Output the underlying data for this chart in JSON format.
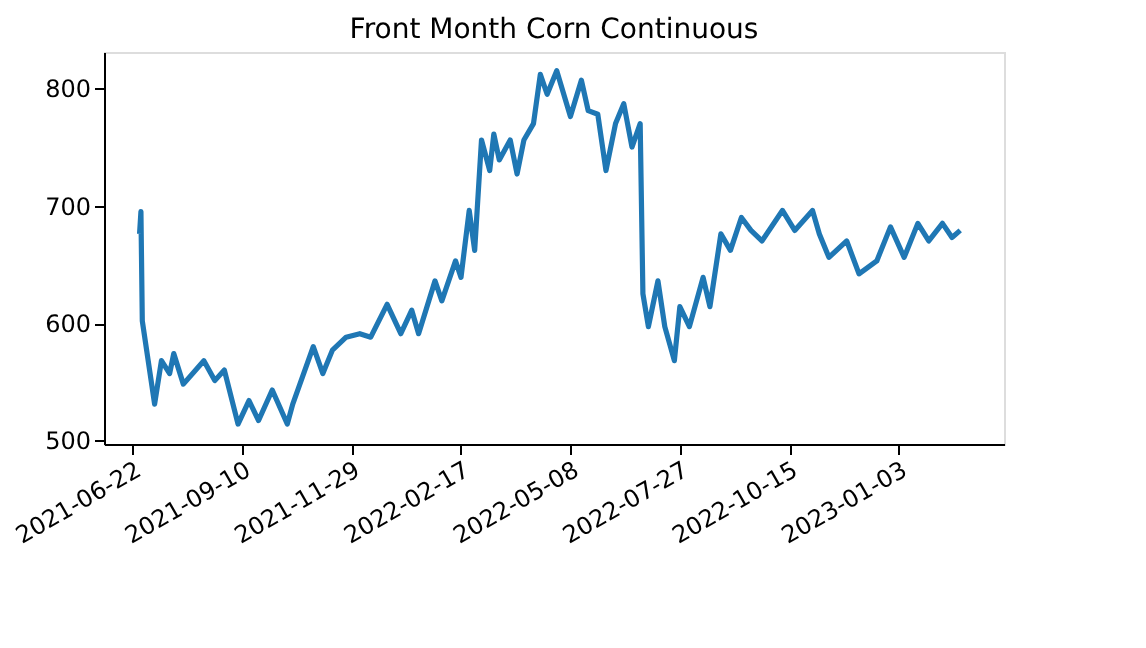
{
  "chart_data": {
    "type": "line",
    "title": "Front Month Corn Continuous",
    "x": [
      "2021-06-27",
      "2021-06-28",
      "2021-06-29",
      "2021-07-08",
      "2021-07-13",
      "2021-07-19",
      "2021-07-22",
      "2021-07-29",
      "2021-08-13",
      "2021-08-21",
      "2021-08-28",
      "2021-09-07",
      "2021-09-15",
      "2021-09-22",
      "2021-10-02",
      "2021-10-13",
      "2021-10-17",
      "2021-11-01",
      "2021-11-08",
      "2021-11-15",
      "2021-11-25",
      "2021-12-05",
      "2021-12-13",
      "2021-12-25",
      "2022-01-04",
      "2022-01-12",
      "2022-01-17",
      "2022-01-29",
      "2022-02-03",
      "2022-02-13",
      "2022-02-17",
      "2022-02-23",
      "2022-02-27",
      "2022-03-04",
      "2022-03-10",
      "2022-03-13",
      "2022-03-17",
      "2022-03-25",
      "2022-03-30",
      "2022-04-04",
      "2022-04-11",
      "2022-04-16",
      "2022-04-21",
      "2022-04-28",
      "2022-05-08",
      "2022-05-16",
      "2022-05-21",
      "2022-05-28",
      "2022-06-03",
      "2022-06-10",
      "2022-06-16",
      "2022-06-22",
      "2022-06-28",
      "2022-06-30",
      "2022-07-04",
      "2022-07-11",
      "2022-07-16",
      "2022-07-23",
      "2022-07-27",
      "2022-08-03",
      "2022-08-13",
      "2022-08-18",
      "2022-08-26",
      "2022-09-02",
      "2022-09-10",
      "2022-09-17",
      "2022-09-25",
      "2022-10-10",
      "2022-10-19",
      "2022-11-01",
      "2022-11-06",
      "2022-11-13",
      "2022-11-26",
      "2022-12-05",
      "2022-12-18",
      "2022-12-28",
      "2023-01-07",
      "2023-01-17",
      "2023-01-25",
      "2023-02-04",
      "2023-02-11",
      "2023-02-17"
    ],
    "series": [
      {
        "color": "#1f77b4",
        "values": [
          676,
          695,
          602,
          531,
          568,
          557,
          574,
          548,
          568,
          551,
          560,
          514,
          534,
          517,
          543,
          514,
          531,
          580,
          557,
          577,
          588,
          591,
          588,
          616,
          591,
          611,
          591,
          636,
          619,
          653,
          639,
          696,
          662,
          756,
          730,
          761,
          739,
          756,
          727,
          756,
          770,
          812,
          795,
          815,
          776,
          807,
          781,
          778,
          730,
          770,
          787,
          750,
          770,
          625,
          597,
          636,
          597,
          568,
          614,
          597,
          639,
          614,
          676,
          662,
          690,
          679,
          670,
          696,
          679,
          696,
          676,
          656,
          670,
          642,
          653,
          682,
          656,
          685,
          670,
          685,
          673,
          679
        ]
      }
    ],
    "xlim": [
      "2021-06-01",
      "2023-03-21"
    ],
    "xticks": [
      "2021-06-22",
      "2021-09-10",
      "2021-11-29",
      "2022-02-17",
      "2022-05-08",
      "2022-07-27",
      "2022-10-15",
      "2023-01-03"
    ],
    "ylim": [
      497,
      831
    ],
    "yticks": [
      500,
      600,
      700,
      800
    ],
    "grid": false,
    "legend": false,
    "line_style": "solid",
    "marker": "none"
  }
}
